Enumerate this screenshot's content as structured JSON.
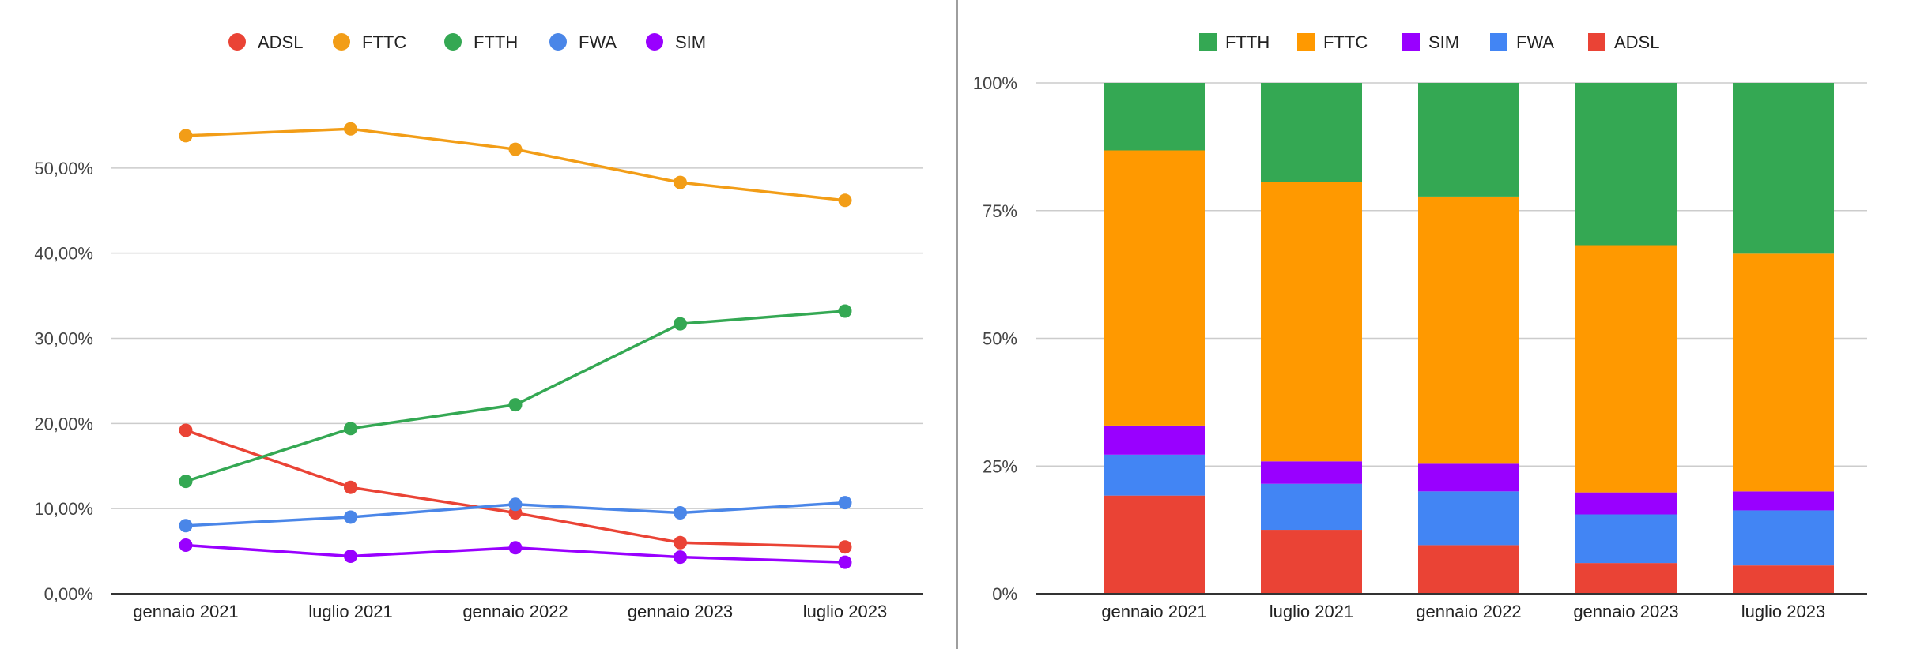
{
  "chart_data": [
    {
      "type": "line",
      "title": "",
      "xlabel": "",
      "ylabel": "",
      "categories": [
        "gennaio 2021",
        "luglio 2021",
        "gennaio 2022",
        "gennaio 2023",
        "luglio 2023"
      ],
      "ylim": [
        0,
        0.6
      ],
      "yticks": [
        {
          "value": 0.0,
          "label": "0,00%"
        },
        {
          "value": 0.1,
          "label": "10,00%"
        },
        {
          "value": 0.2,
          "label": "20,00%"
        },
        {
          "value": 0.3,
          "label": "30,00%"
        },
        {
          "value": 0.4,
          "label": "40,00%"
        },
        {
          "value": 0.5,
          "label": "50,00%"
        }
      ],
      "grid": true,
      "legend_position": "top",
      "series": [
        {
          "name": "ADSL",
          "color": "#ea4335",
          "values": [
            0.192,
            0.125,
            0.095,
            0.06,
            0.055
          ]
        },
        {
          "name": "FTTC",
          "color": "#f29d17",
          "values": [
            0.538,
            0.546,
            0.522,
            0.483,
            0.462
          ]
        },
        {
          "name": "FTTH",
          "color": "#34a853",
          "values": [
            0.132,
            0.194,
            0.222,
            0.317,
            0.332
          ]
        },
        {
          "name": "FWA",
          "color": "#4a86e8",
          "values": [
            0.08,
            0.09,
            0.105,
            0.095,
            0.107
          ]
        },
        {
          "name": "SIM",
          "color": "#9900ff",
          "values": [
            0.057,
            0.044,
            0.054,
            0.043,
            0.037
          ]
        }
      ]
    },
    {
      "type": "bar",
      "stacked": "percent",
      "title": "",
      "xlabel": "",
      "ylabel": "",
      "categories": [
        "gennaio 2021",
        "luglio 2021",
        "gennaio 2022",
        "gennaio 2023",
        "luglio 2023"
      ],
      "ylim": [
        0,
        1
      ],
      "yticks": [
        {
          "value": 0.0,
          "label": "0%"
        },
        {
          "value": 0.25,
          "label": "25%"
        },
        {
          "value": 0.5,
          "label": "50%"
        },
        {
          "value": 0.75,
          "label": "75%"
        },
        {
          "value": 1.0,
          "label": "100%"
        }
      ],
      "grid": true,
      "legend_position": "top",
      "stack_order_bottom_to_top": [
        "ADSL",
        "FWA",
        "SIM",
        "FTTC",
        "FTTH"
      ],
      "series": [
        {
          "name": "FTTH",
          "color": "#34a853",
          "values": [
            0.132,
            0.194,
            0.222,
            0.317,
            0.332
          ]
        },
        {
          "name": "FTTC",
          "color": "#ff9900",
          "values": [
            0.538,
            0.546,
            0.522,
            0.483,
            0.462
          ]
        },
        {
          "name": "SIM",
          "color": "#9900ff",
          "values": [
            0.057,
            0.044,
            0.054,
            0.043,
            0.037
          ]
        },
        {
          "name": "FWA",
          "color": "#4285f4",
          "values": [
            0.08,
            0.09,
            0.105,
            0.095,
            0.107
          ]
        },
        {
          "name": "ADSL",
          "color": "#ea4335",
          "values": [
            0.192,
            0.125,
            0.095,
            0.06,
            0.055
          ]
        }
      ]
    }
  ]
}
